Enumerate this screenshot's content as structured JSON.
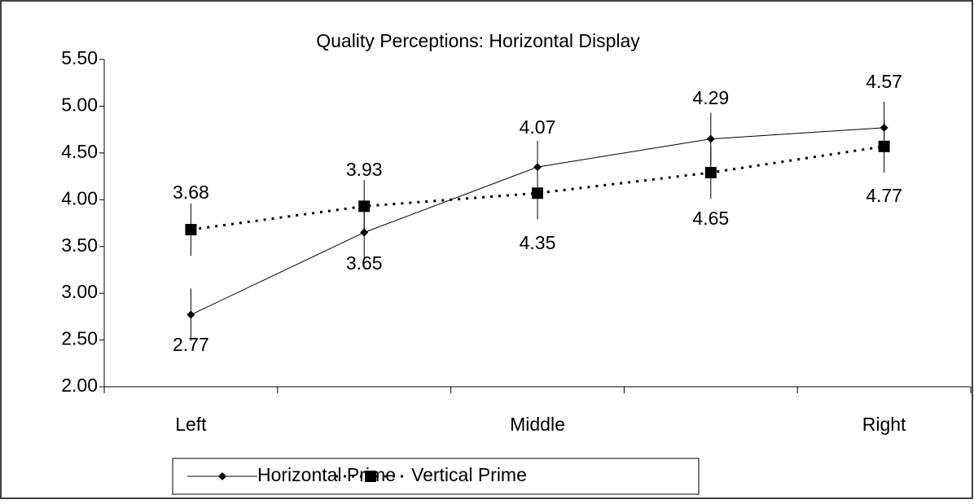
{
  "chart_data": {
    "type": "line",
    "title": "Quality Perceptions: Horizontal Display",
    "categories": [
      "Left",
      null,
      "Middle",
      null,
      "Right"
    ],
    "series": [
      {
        "name": "Horizontal Prime",
        "color": "#000000",
        "values": [
          2.77,
          3.65,
          4.35,
          4.65,
          4.77
        ],
        "errors": [
          0.28,
          0.28,
          0.28,
          0.28,
          0.28
        ]
      },
      {
        "name": "Vertical Prime",
        "color": "#000000",
        "values": [
          3.68,
          3.93,
          4.07,
          4.29,
          4.57
        ],
        "errors": [
          0.28,
          0.28,
          0.28,
          0.28,
          0.28
        ]
      }
    ],
    "ylim": [
      2,
      5.5
    ],
    "yticks": [
      {
        "value": 2,
        "label": "2.00"
      },
      {
        "value": 2.5,
        "label": "2.50"
      },
      {
        "value": 3,
        "label": "3.00"
      },
      {
        "value": 3.5,
        "label": "3.50"
      },
      {
        "value": 4,
        "label": "4.00"
      },
      {
        "value": 4.5,
        "label": "4.50"
      },
      {
        "value": 5,
        "label": "5.00"
      },
      {
        "value": 5.5,
        "label": "5.50"
      }
    ],
    "grid": false,
    "legend": "bottom"
  }
}
